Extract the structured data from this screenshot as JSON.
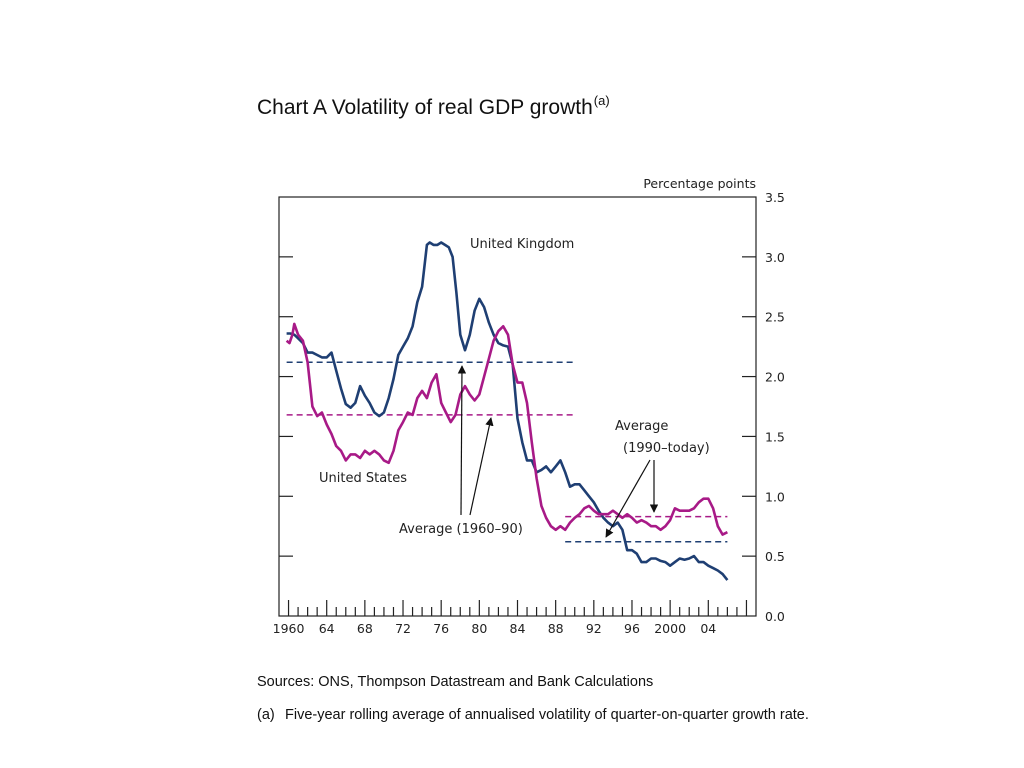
{
  "title": "Chart A Volatility of real GDP growth",
  "title_superscript": "(a)",
  "chart_data": {
    "type": "line",
    "unit_label": "Percentage points",
    "x_ticks": [
      "1960",
      "64",
      "68",
      "72",
      "76",
      "80",
      "84",
      "88",
      "92",
      "96",
      "2000",
      "04"
    ],
    "xlim": [
      1959,
      2009
    ],
    "ylim": [
      0,
      3.5
    ],
    "y_ticks": [
      "0.0",
      "0.5",
      "1.0",
      "1.5",
      "2.0",
      "2.5",
      "3.0",
      "3.5"
    ],
    "series": [
      {
        "name": "United Kingdom",
        "color": "#1f3f73",
        "points": [
          [
            1959.8,
            2.36
          ],
          [
            1960.2,
            2.36
          ],
          [
            1960.6,
            2.35
          ],
          [
            1961.0,
            2.32
          ],
          [
            1961.5,
            2.28
          ],
          [
            1962.0,
            2.2
          ],
          [
            1962.5,
            2.2
          ],
          [
            1963.0,
            2.18
          ],
          [
            1963.5,
            2.16
          ],
          [
            1964.0,
            2.16
          ],
          [
            1964.5,
            2.2
          ],
          [
            1965.0,
            2.05
          ],
          [
            1965.5,
            1.9
          ],
          [
            1966.0,
            1.77
          ],
          [
            1966.5,
            1.74
          ],
          [
            1967.0,
            1.78
          ],
          [
            1967.5,
            1.92
          ],
          [
            1968.0,
            1.84
          ],
          [
            1968.5,
            1.78
          ],
          [
            1969.0,
            1.7
          ],
          [
            1969.5,
            1.67
          ],
          [
            1970.0,
            1.7
          ],
          [
            1970.5,
            1.82
          ],
          [
            1971.0,
            1.98
          ],
          [
            1971.5,
            2.18
          ],
          [
            1972.0,
            2.25
          ],
          [
            1972.5,
            2.32
          ],
          [
            1973.0,
            2.42
          ],
          [
            1973.5,
            2.62
          ],
          [
            1974.0,
            2.75
          ],
          [
            1974.5,
            3.1
          ],
          [
            1974.8,
            3.12
          ],
          [
            1975.2,
            3.1
          ],
          [
            1975.6,
            3.1
          ],
          [
            1976.0,
            3.12
          ],
          [
            1976.4,
            3.1
          ],
          [
            1976.8,
            3.08
          ],
          [
            1977.2,
            3.0
          ],
          [
            1977.6,
            2.7
          ],
          [
            1978.0,
            2.35
          ],
          [
            1978.5,
            2.22
          ],
          [
            1979.0,
            2.35
          ],
          [
            1979.5,
            2.55
          ],
          [
            1980.0,
            2.65
          ],
          [
            1980.5,
            2.58
          ],
          [
            1981.0,
            2.45
          ],
          [
            1981.5,
            2.35
          ],
          [
            1982.0,
            2.28
          ],
          [
            1982.5,
            2.26
          ],
          [
            1983.0,
            2.25
          ],
          [
            1983.5,
            2.1
          ],
          [
            1984.0,
            1.65
          ],
          [
            1984.5,
            1.45
          ],
          [
            1985.0,
            1.3
          ],
          [
            1985.5,
            1.3
          ],
          [
            1986.0,
            1.2
          ],
          [
            1986.5,
            1.22
          ],
          [
            1987.0,
            1.25
          ],
          [
            1987.5,
            1.2
          ],
          [
            1988.0,
            1.25
          ],
          [
            1988.5,
            1.3
          ],
          [
            1989.0,
            1.2
          ],
          [
            1989.5,
            1.08
          ],
          [
            1990.0,
            1.1
          ],
          [
            1990.5,
            1.1
          ],
          [
            1991.0,
            1.05
          ],
          [
            1991.5,
            1.0
          ],
          [
            1992.0,
            0.95
          ],
          [
            1992.5,
            0.88
          ],
          [
            1993.0,
            0.82
          ],
          [
            1993.5,
            0.78
          ],
          [
            1994.0,
            0.75
          ],
          [
            1994.5,
            0.78
          ],
          [
            1995.0,
            0.72
          ],
          [
            1995.5,
            0.55
          ],
          [
            1996.0,
            0.55
          ],
          [
            1996.5,
            0.52
          ],
          [
            1997.0,
            0.45
          ],
          [
            1997.5,
            0.45
          ],
          [
            1998.0,
            0.48
          ],
          [
            1998.5,
            0.48
          ],
          [
            1999.0,
            0.46
          ],
          [
            1999.5,
            0.45
          ],
          [
            2000.0,
            0.42
          ],
          [
            2000.5,
            0.45
          ],
          [
            2001.0,
            0.48
          ],
          [
            2001.5,
            0.47
          ],
          [
            2002.0,
            0.48
          ],
          [
            2002.5,
            0.5
          ],
          [
            2003.0,
            0.45
          ],
          [
            2003.5,
            0.45
          ],
          [
            2004.0,
            0.42
          ],
          [
            2004.5,
            0.4
          ],
          [
            2005.0,
            0.38
          ],
          [
            2005.5,
            0.35
          ],
          [
            2006.0,
            0.3
          ]
        ]
      },
      {
        "name": "United States",
        "color": "#a81a87",
        "points": [
          [
            1959.8,
            2.3
          ],
          [
            1960.1,
            2.28
          ],
          [
            1960.4,
            2.35
          ],
          [
            1960.6,
            2.44
          ],
          [
            1961.0,
            2.35
          ],
          [
            1961.5,
            2.3
          ],
          [
            1962.0,
            2.12
          ],
          [
            1962.5,
            1.75
          ],
          [
            1963.0,
            1.67
          ],
          [
            1963.5,
            1.7
          ],
          [
            1964.0,
            1.6
          ],
          [
            1964.5,
            1.52
          ],
          [
            1965.0,
            1.42
          ],
          [
            1965.5,
            1.38
          ],
          [
            1966.0,
            1.3
          ],
          [
            1966.5,
            1.35
          ],
          [
            1967.0,
            1.35
          ],
          [
            1967.5,
            1.32
          ],
          [
            1968.0,
            1.38
          ],
          [
            1968.5,
            1.35
          ],
          [
            1969.0,
            1.38
          ],
          [
            1969.5,
            1.35
          ],
          [
            1970.0,
            1.3
          ],
          [
            1970.5,
            1.28
          ],
          [
            1971.0,
            1.38
          ],
          [
            1971.5,
            1.55
          ],
          [
            1972.0,
            1.62
          ],
          [
            1972.5,
            1.7
          ],
          [
            1973.0,
            1.68
          ],
          [
            1973.5,
            1.82
          ],
          [
            1974.0,
            1.88
          ],
          [
            1974.5,
            1.82
          ],
          [
            1975.0,
            1.95
          ],
          [
            1975.5,
            2.02
          ],
          [
            1976.0,
            1.78
          ],
          [
            1976.5,
            1.7
          ],
          [
            1977.0,
            1.62
          ],
          [
            1977.5,
            1.68
          ],
          [
            1978.0,
            1.85
          ],
          [
            1978.5,
            1.92
          ],
          [
            1979.0,
            1.85
          ],
          [
            1979.5,
            1.8
          ],
          [
            1980.0,
            1.85
          ],
          [
            1980.5,
            2.0
          ],
          [
            1981.0,
            2.15
          ],
          [
            1981.5,
            2.3
          ],
          [
            1982.0,
            2.38
          ],
          [
            1982.5,
            2.42
          ],
          [
            1983.0,
            2.35
          ],
          [
            1983.5,
            2.1
          ],
          [
            1984.0,
            1.95
          ],
          [
            1984.5,
            1.95
          ],
          [
            1985.0,
            1.78
          ],
          [
            1985.5,
            1.45
          ],
          [
            1986.0,
            1.15
          ],
          [
            1986.5,
            0.92
          ],
          [
            1987.0,
            0.82
          ],
          [
            1987.5,
            0.75
          ],
          [
            1988.0,
            0.72
          ],
          [
            1988.5,
            0.75
          ],
          [
            1989.0,
            0.72
          ],
          [
            1989.5,
            0.78
          ],
          [
            1990.0,
            0.82
          ],
          [
            1990.5,
            0.85
          ],
          [
            1991.0,
            0.9
          ],
          [
            1991.5,
            0.92
          ],
          [
            1992.0,
            0.88
          ],
          [
            1992.5,
            0.85
          ],
          [
            1993.0,
            0.85
          ],
          [
            1993.5,
            0.85
          ],
          [
            1994.0,
            0.88
          ],
          [
            1994.5,
            0.85
          ],
          [
            1995.0,
            0.82
          ],
          [
            1995.5,
            0.85
          ],
          [
            1996.0,
            0.82
          ],
          [
            1996.5,
            0.78
          ],
          [
            1997.0,
            0.8
          ],
          [
            1997.5,
            0.78
          ],
          [
            1998.0,
            0.75
          ],
          [
            1998.5,
            0.75
          ],
          [
            1999.0,
            0.72
          ],
          [
            1999.5,
            0.75
          ],
          [
            2000.0,
            0.8
          ],
          [
            2000.5,
            0.9
          ],
          [
            2001.0,
            0.88
          ],
          [
            2001.5,
            0.88
          ],
          [
            2002.0,
            0.88
          ],
          [
            2002.5,
            0.9
          ],
          [
            2003.0,
            0.95
          ],
          [
            2003.5,
            0.98
          ],
          [
            2004.0,
            0.98
          ],
          [
            2004.5,
            0.9
          ],
          [
            2005.0,
            0.75
          ],
          [
            2005.5,
            0.68
          ],
          [
            2006.0,
            0.7
          ]
        ]
      }
    ],
    "averages": [
      {
        "series": "United Kingdom",
        "period": "1960-90",
        "x": [
          1959.8,
          1990.0
        ],
        "value": 2.12,
        "color": "#1f3f73"
      },
      {
        "series": "United States",
        "period": "1960-90",
        "x": [
          1959.8,
          1990.0
        ],
        "value": 1.68,
        "color": "#a81a87"
      },
      {
        "series": "United States",
        "period": "1990-today",
        "x": [
          1989.0,
          2006.0
        ],
        "value": 0.83,
        "color": "#a81a87"
      },
      {
        "series": "United Kingdom",
        "period": "1990-today",
        "x": [
          1989.0,
          2006.0
        ],
        "value": 0.62,
        "color": "#1f3f73"
      }
    ],
    "annotations": [
      {
        "text": "United Kingdom"
      },
      {
        "text": "United States"
      },
      {
        "text": "Average (1960–90)"
      },
      {
        "text": "Average"
      },
      {
        "text": "(1990–today)"
      }
    ]
  },
  "sources": "Sources: ONS, Thompson Datastream and Bank Calculations",
  "footnote": {
    "marker": "(a)",
    "text": "Five-year rolling average of annualised volatility of quarter-on-quarter growth rate."
  }
}
